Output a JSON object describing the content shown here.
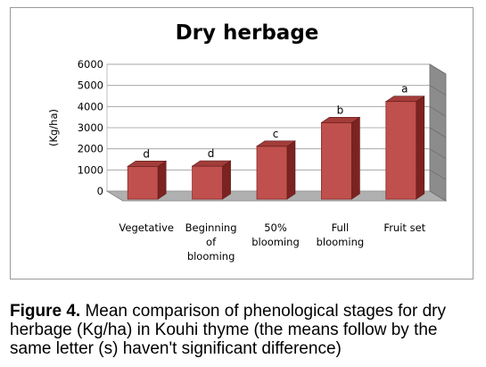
{
  "chart_data": {
    "type": "bar",
    "style": "3d-column",
    "title": "Dry herbage",
    "ylabel": "(Kg/ha)",
    "xlabel": "",
    "categories": [
      [
        "Vegetative"
      ],
      [
        "Beginning",
        "of",
        "blooming"
      ],
      [
        "50%",
        "blooming"
      ],
      [
        "Full",
        "blooming"
      ],
      [
        "Fruit set"
      ]
    ],
    "values": [
      1550,
      1560,
      2500,
      3620,
      4620
    ],
    "letters": [
      "d",
      "d",
      "c",
      "b",
      "a"
    ],
    "ylim": [
      0,
      6000
    ],
    "yticks": [
      0,
      1000,
      2000,
      3000,
      4000,
      5000,
      6000
    ],
    "grid": true,
    "legend": "none",
    "colors": {
      "bar_front": "#c0504d",
      "bar_side": "#7b2321",
      "bar_top": "#a33d3a",
      "back_wall": "#ffffff",
      "side_wall": "#8c8c8c",
      "floor": "#b0b0b0",
      "grid": "#9a9a9a"
    }
  },
  "caption": {
    "label": "Figure 4.",
    "text": " Mean comparison of phenological stages for dry herbage (Kg/ha) in Kouhi thyme (the means follow by the same letter (s) haven't significant difference)"
  }
}
